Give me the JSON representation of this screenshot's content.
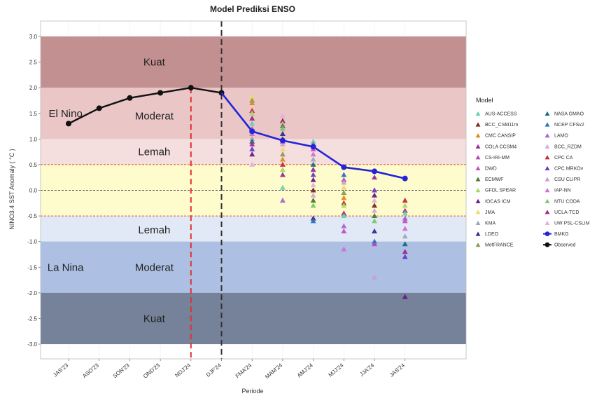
{
  "chart_data": {
    "type": "line",
    "title": "Model Prediksi ENSO",
    "xlabel": "Periode",
    "ylabel": "NINO3.4 SST Anomaly ( °C )",
    "ylim": [
      -3.0,
      3.0
    ],
    "y_ticks": [
      "3.0",
      "2.5",
      "2.0",
      "1.5",
      "1.0",
      "0.5",
      "0.0",
      "-0.5",
      "-1.0",
      "-1.5",
      "-2.0",
      "-2.5",
      "-3.0"
    ],
    "y_tick_values": [
      3.0,
      2.5,
      2.0,
      1.5,
      1.0,
      0.5,
      0.0,
      -0.5,
      -1.0,
      -1.5,
      -2.0,
      -2.5,
      -3.0
    ],
    "categories": [
      "JAS'23",
      "ASO'23",
      "SON'23",
      "OND'23",
      "NDJ'24",
      "DJF'24",
      "FMA'24",
      "MAM'24",
      "AMJ'24",
      "MJJ'24",
      "JJA'24",
      "JAS'24"
    ],
    "bands": [
      {
        "from": 2.0,
        "to": 3.0,
        "color": "#c08a8c"
      },
      {
        "from": 1.0,
        "to": 2.0,
        "color": "#e9c3c4"
      },
      {
        "from": 0.5,
        "to": 1.0,
        "color": "#f4dcdc"
      },
      {
        "from": -0.5,
        "to": 0.5,
        "color": "#fefcc9"
      },
      {
        "from": -1.0,
        "to": -0.5,
        "color": "#dfe8f6"
      },
      {
        "from": -2.0,
        "to": -1.0,
        "color": "#a9bde2"
      },
      {
        "from": -3.0,
        "to": -2.0,
        "color": "#6e7b93"
      }
    ],
    "zone_labels": [
      {
        "text": "Kuat",
        "y": 2.5,
        "col": 2.8
      },
      {
        "text": "El Nino",
        "y": 1.5,
        "col": -0.1
      },
      {
        "text": "Moderat",
        "y": 1.45,
        "col": 2.8
      },
      {
        "text": "Lemah",
        "y": 0.75,
        "col": 2.8
      },
      {
        "text": "Lemah",
        "y": -0.77,
        "col": 2.8
      },
      {
        "text": "La Nina",
        "y": -1.5,
        "col": -0.1
      },
      {
        "text": "Moderat",
        "y": -1.5,
        "col": 2.8
      },
      {
        "text": "Kuat",
        "y": -2.5,
        "col": 2.8
      }
    ],
    "threshold_lines": [
      0.5,
      -0.5
    ],
    "zero_line": 0.0,
    "vertical_lines": [
      {
        "at": "NDJ'24",
        "color": "#e0312f"
      },
      {
        "at": "DJF'24",
        "color": "#333333"
      }
    ],
    "observed": {
      "name": "Observed",
      "color": "#111111",
      "x": [
        "JAS'23",
        "ASO'23",
        "SON'23",
        "OND'23",
        "NDJ'24",
        "DJF'24"
      ],
      "values": [
        1.3,
        1.6,
        1.8,
        1.9,
        2.0,
        1.9
      ]
    },
    "bmkg": {
      "name": "BMKG",
      "color": "#2424d8",
      "x": [
        "DJF'24",
        "FMA'24",
        "MAM'24",
        "AMJ'24",
        "MJJ'24",
        "JJA'24",
        "JAS'24"
      ],
      "values": [
        1.9,
        1.15,
        0.97,
        0.85,
        0.45,
        0.37,
        0.23
      ]
    },
    "legend": {
      "title": "Model",
      "position": "right",
      "items": [
        {
          "name": "AUS-ACCESS",
          "color": "#66d4a8"
        },
        {
          "name": "NASA GMAO",
          "color": "#1a6e7a"
        },
        {
          "name": "BCC_CSM11m",
          "color": "#7a2a1a"
        },
        {
          "name": "NCEP CFSv2",
          "color": "#2d6fc0"
        },
        {
          "name": "CMC CANSIP",
          "color": "#e08a1e"
        },
        {
          "name": "LAMO",
          "color": "#a468c8"
        },
        {
          "name": "COLA CCSM4",
          "color": "#9a2a9a"
        },
        {
          "name": "BCC_RZDM",
          "color": "#d9a8d9"
        },
        {
          "name": "CS-IRI-MM",
          "color": "#b04ab0"
        },
        {
          "name": "CPC CA",
          "color": "#c42a3a"
        },
        {
          "name": "DWD",
          "color": "#c050c0"
        },
        {
          "name": "CPC MRKOv",
          "color": "#6a3ac8"
        },
        {
          "name": "ECMWF",
          "color": "#4c7a2e"
        },
        {
          "name": "CSU CLIPR",
          "color": "#c8a0d0"
        },
        {
          "name": "GFDL SPEAR",
          "color": "#a8d868"
        },
        {
          "name": "IAP-NN",
          "color": "#d070d0"
        },
        {
          "name": "IOCAS ICM",
          "color": "#6a1a8a"
        },
        {
          "name": "NTU CODA",
          "color": "#7ac870"
        },
        {
          "name": "JMA",
          "color": "#f0d870"
        },
        {
          "name": "UCLA-TCD",
          "color": "#a02a8a"
        },
        {
          "name": "KMA",
          "color": "#9aaab8"
        },
        {
          "name": "UW PSL-CSLIM",
          "color": "#e0b0e0"
        },
        {
          "name": "LDEO",
          "color": "#3a2a8a"
        },
        {
          "name": "BMKG",
          "color": "#2424d8"
        },
        {
          "name": "MetFRANCE",
          "color": "#8a9a5a"
        },
        {
          "name": "Observed",
          "color": "#111111"
        }
      ]
    },
    "model_points": [
      {
        "x": "FMA'24",
        "values": [
          1.82,
          1.75,
          1.7,
          1.55,
          1.5,
          1.4,
          1.3,
          1.2,
          1.15,
          1.1,
          1.0,
          0.95,
          0.9,
          0.8,
          0.7,
          0.5
        ]
      },
      {
        "x": "MAM'24",
        "values": [
          1.45,
          1.35,
          1.3,
          1.25,
          1.2,
          1.1,
          1.0,
          0.95,
          0.9,
          0.8,
          0.7,
          0.6,
          0.5,
          0.4,
          0.3,
          0.05,
          -0.2
        ]
      },
      {
        "x": "AMJ'24",
        "values": [
          0.95,
          0.9,
          0.8,
          0.7,
          0.6,
          0.5,
          0.4,
          0.3,
          0.2,
          0.1,
          0.0,
          -0.1,
          -0.2,
          -0.3,
          -0.55,
          -0.6
        ]
      },
      {
        "x": "MJJ'24",
        "values": [
          0.3,
          0.2,
          0.15,
          0.05,
          -0.05,
          -0.15,
          -0.25,
          -0.3,
          -0.45,
          -0.5,
          -0.7,
          -0.8,
          -1.15
        ]
      },
      {
        "x": "JJA'24",
        "values": [
          0.25,
          0.0,
          -0.1,
          -0.2,
          -0.3,
          -0.4,
          -0.5,
          -0.6,
          -0.8,
          -1.0,
          -1.05,
          -1.7
        ]
      },
      {
        "x": "JAS'24",
        "values": [
          -0.2,
          -0.3,
          -0.4,
          -0.45,
          -0.55,
          -0.6,
          -0.75,
          -0.9,
          -1.05,
          -1.2,
          -1.3,
          -2.08
        ]
      }
    ]
  }
}
